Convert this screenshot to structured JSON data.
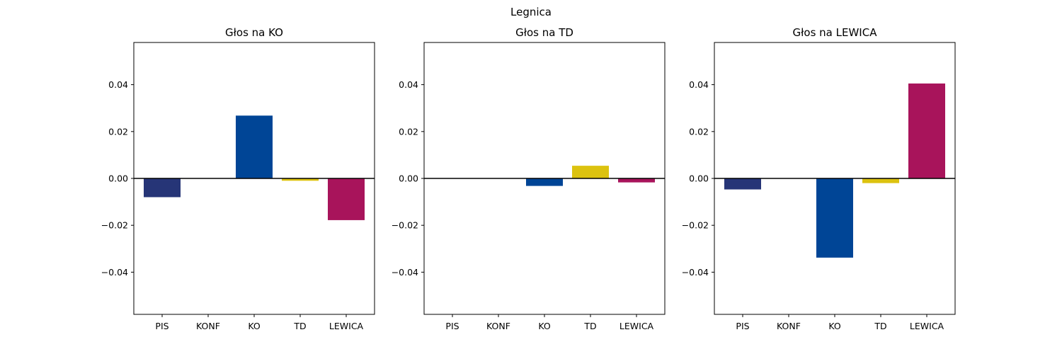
{
  "figure": {
    "suptitle": "Legnica"
  },
  "chart_data": [
    {
      "type": "bar",
      "title": "Głos na KO",
      "categories": [
        "PIS",
        "KONF",
        "KO",
        "TD",
        "LEWICA"
      ],
      "values": [
        -0.008,
        0.0,
        0.0268,
        -0.001,
        -0.0178
      ],
      "colors": [
        "#263577",
        "#ffffff",
        "#004596",
        "#dcc20f",
        "#a8145b"
      ],
      "ylim": [
        -0.058,
        0.058
      ],
      "yticks": [
        "−0.04",
        "−0.02",
        "0.00",
        "0.02",
        "0.04"
      ],
      "ytick_values": [
        -0.04,
        -0.02,
        0.0,
        0.02,
        0.04
      ],
      "xlabel": "",
      "ylabel": "",
      "grid": false
    },
    {
      "type": "bar",
      "title": "Głos na TD",
      "categories": [
        "PIS",
        "KONF",
        "KO",
        "TD",
        "LEWICA"
      ],
      "values": [
        0.0,
        0.0,
        -0.0032,
        0.0054,
        -0.0017
      ],
      "colors": [
        "#263577",
        "#ffffff",
        "#004596",
        "#dcc20f",
        "#a8145b"
      ],
      "ylim": [
        -0.058,
        0.058
      ],
      "yticks": [
        "−0.04",
        "−0.02",
        "0.00",
        "0.02",
        "0.04"
      ],
      "ytick_values": [
        -0.04,
        -0.02,
        0.0,
        0.02,
        0.04
      ],
      "xlabel": "",
      "ylabel": "",
      "grid": false
    },
    {
      "type": "bar",
      "title": "Głos na LEWICA",
      "categories": [
        "PIS",
        "KONF",
        "KO",
        "TD",
        "LEWICA"
      ],
      "values": [
        -0.0047,
        0.0,
        -0.0338,
        -0.002,
        0.0405
      ],
      "colors": [
        "#263577",
        "#ffffff",
        "#004596",
        "#dcc20f",
        "#a8145b"
      ],
      "ylim": [
        -0.058,
        0.058
      ],
      "yticks": [
        "−0.04",
        "−0.02",
        "0.00",
        "0.02",
        "0.04"
      ],
      "ytick_values": [
        -0.04,
        -0.02,
        0.0,
        0.02,
        0.04
      ],
      "xlabel": "",
      "ylabel": "",
      "grid": false
    }
  ]
}
